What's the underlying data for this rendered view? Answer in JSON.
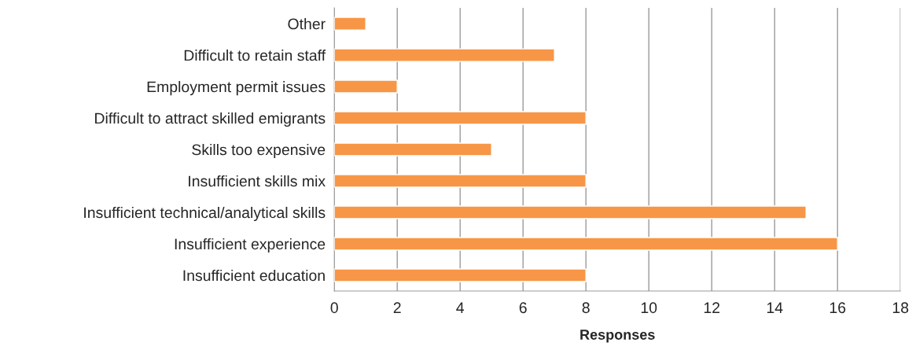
{
  "chart_data": {
    "type": "bar",
    "orientation": "horizontal",
    "xlabel": "Responses",
    "categories": [
      "Other",
      "Difficult to retain staff",
      "Employment permit issues",
      "Difficult to attract skilled emigrants",
      "Skills too expensive",
      "Insufficient skills mix",
      "Insufficient technical/analytical skills",
      "Insufficient experience",
      "Insufficient education"
    ],
    "values": [
      1,
      7,
      2,
      8,
      5,
      8,
      15,
      16,
      8
    ],
    "color": "#f79646",
    "xlim": [
      0,
      18
    ],
    "xticks": [
      0,
      2,
      4,
      6,
      8,
      10,
      12,
      14,
      16,
      18
    ],
    "grid": "x",
    "legend": false
  }
}
